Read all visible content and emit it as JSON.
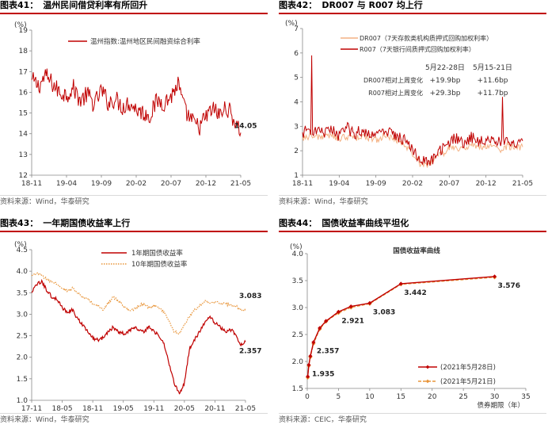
{
  "colors": {
    "dark_red": "#c00000",
    "light_orange": "#f4b183",
    "orange_dotted": "#e8953a",
    "axis_gray": "#888888",
    "grid_gray": "#d9d9d9"
  },
  "panels": [
    {
      "fig": "图表41：",
      "title": "温州民间借贷利率有所回升",
      "source": "资料来源：Wind，华泰研究"
    },
    {
      "fig": "图表42：",
      "title": "DR007 与 R007 均上行",
      "source": "资料来源：Wind，华泰研究"
    },
    {
      "fig": "图表43：",
      "title": "一年期国债收益率上行",
      "source": "资料来源：Wind，华泰研究"
    },
    {
      "fig": "图表44：",
      "title": "国债收益率曲线平坦化",
      "source": "资料来源：CEIC，华泰研究"
    }
  ],
  "chart_data": [
    {
      "type": "line",
      "unit_label": "(%)",
      "ylim": [
        12,
        19
      ],
      "yticks": [
        "12",
        "13",
        "14",
        "15",
        "16",
        "17",
        "18",
        "19"
      ],
      "xtick_labels": [
        "18-11",
        "19-04",
        "19-09",
        "20-02",
        "20-07",
        "20-12",
        "21-05"
      ],
      "x_count": 31,
      "xtick_idx": [
        0,
        5,
        10,
        15,
        20,
        25,
        30
      ],
      "series": [
        {
          "name": "温州指数:温州地区民间融资综合利率",
          "color": "#c00000",
          "values": [
            16.6,
            16.3,
            16.8,
            16.4,
            16.0,
            15.9,
            16.2,
            15.6,
            15.9,
            15.4,
            16.1,
            15.5,
            15.7,
            15.3,
            15.5,
            15.2,
            15.0,
            14.9,
            15.6,
            15.5,
            15.8,
            16.4,
            15.1,
            14.6,
            14.3,
            14.8,
            15.2,
            14.9,
            15.3,
            14.7,
            14.05
          ],
          "noise": 0.45,
          "end_label": "14.05"
        }
      ]
    },
    {
      "type": "line",
      "unit_label": "(%)",
      "ylim": [
        1,
        7
      ],
      "yticks": [
        "1",
        "2",
        "3",
        "4",
        "5",
        "6",
        "7"
      ],
      "xtick_labels": [
        "18-11",
        "19-04",
        "19-09",
        "20-02",
        "20-07",
        "20-12",
        "21-05"
      ],
      "x_count": 31,
      "xtick_idx": [
        0,
        5,
        10,
        15,
        20,
        25,
        30
      ],
      "series": [
        {
          "name": "DR007（7天存款类机构质押式回购加权利率）",
          "color": "#f4b183",
          "values": [
            2.55,
            2.6,
            2.6,
            2.55,
            2.65,
            2.45,
            2.6,
            2.5,
            2.6,
            2.55,
            2.45,
            2.6,
            2.5,
            2.45,
            2.2,
            1.9,
            1.5,
            1.45,
            1.65,
            1.85,
            2.1,
            2.15,
            2.05,
            2.2,
            2.15,
            2.2,
            2.15,
            2.05,
            2.2,
            2.1,
            2.15
          ],
          "noise": 0.15
        },
        {
          "name": "R007（7天银行间质押式回购加权利率）",
          "color": "#c00000",
          "values": [
            2.75,
            2.85,
            2.8,
            2.7,
            2.9,
            2.6,
            2.95,
            2.7,
            2.8,
            2.75,
            2.65,
            2.8,
            2.7,
            2.6,
            2.45,
            2.1,
            1.6,
            1.5,
            1.75,
            2.05,
            2.4,
            2.5,
            2.35,
            2.55,
            2.4,
            2.5,
            2.45,
            2.3,
            2.5,
            2.3,
            2.4
          ],
          "noise": 0.25
        }
      ],
      "spikes": [
        {
          "series": 1,
          "x": 1.3,
          "y": 5.9
        },
        {
          "series": 1,
          "x": 27.2,
          "y": 4.2
        }
      ],
      "annotation_table": {
        "headers": [
          "5月22-28日",
          "5月15-21日"
        ],
        "rows": [
          {
            "label": "DR007相对上周变化",
            "v1": "+19.9bp",
            "v2": "+11.6bp"
          },
          {
            "label": "R007相对上周变化",
            "v1": "+29.3bp",
            "v2": "+11.7bp"
          }
        ]
      }
    },
    {
      "type": "line",
      "unit_label": "(%)",
      "ylim": [
        1.0,
        4.5
      ],
      "yticks": [
        "1.0",
        "1.5",
        "2.0",
        "2.5",
        "3.0",
        "3.5",
        "4.0",
        "4.5"
      ],
      "xtick_labels": [
        "17-11",
        "18-05",
        "18-11",
        "19-05",
        "19-11",
        "20-05",
        "20-11",
        "21-05"
      ],
      "x_count": 43,
      "xtick_idx": [
        0,
        6,
        12,
        18,
        24,
        30,
        36,
        42
      ],
      "series": [
        {
          "name": "1年期国债收益率",
          "color": "#c00000",
          "dashed": false,
          "values": [
            3.5,
            3.7,
            3.75,
            3.55,
            3.4,
            3.35,
            3.15,
            3.05,
            3.1,
            2.9,
            2.75,
            2.6,
            2.45,
            2.4,
            2.45,
            2.6,
            2.7,
            2.6,
            2.55,
            2.6,
            2.7,
            2.65,
            2.6,
            2.7,
            2.6,
            2.5,
            2.3,
            1.85,
            1.4,
            1.15,
            1.4,
            2.2,
            2.4,
            2.6,
            2.8,
            2.95,
            2.8,
            2.7,
            2.6,
            2.65,
            2.55,
            2.3,
            2.357
          ],
          "noise": 0.04,
          "end_label": "2.357"
        },
        {
          "name": "10年期国债收益率",
          "color": "#e8953a",
          "dashed": true,
          "values": [
            3.9,
            3.95,
            3.9,
            3.8,
            3.75,
            3.7,
            3.6,
            3.55,
            3.6,
            3.5,
            3.4,
            3.35,
            3.25,
            3.2,
            3.1,
            3.25,
            3.4,
            3.3,
            3.2,
            3.1,
            3.1,
            3.2,
            3.25,
            3.15,
            3.2,
            3.15,
            3.05,
            2.85,
            2.6,
            2.55,
            2.75,
            2.95,
            3.1,
            3.2,
            3.3,
            3.25,
            3.3,
            3.25,
            3.25,
            3.2,
            3.2,
            3.1,
            3.083
          ],
          "noise": 0.03,
          "end_label": "3.083"
        }
      ]
    },
    {
      "type": "line",
      "title": "国债收益率曲线",
      "unit_label": "(%)",
      "xlabel": "债券期限（年）",
      "ylim": [
        1.5,
        4.0
      ],
      "xlim": [
        0,
        35
      ],
      "yticks": [
        "1.5",
        "2.0",
        "2.5",
        "3.0",
        "3.5",
        "4.0"
      ],
      "xticks": [
        "0",
        "5",
        "10",
        "15",
        "20",
        "25",
        "30",
        "35"
      ],
      "series": [
        {
          "name": "(2021年5月28日)",
          "color": "#c00000",
          "dashed": false,
          "x": [
            0.08,
            0.25,
            0.5,
            1,
            2,
            3,
            5,
            7,
            10,
            15,
            30
          ],
          "values": [
            1.72,
            1.935,
            2.1,
            2.357,
            2.62,
            2.75,
            2.921,
            3.02,
            3.083,
            3.442,
            3.576
          ]
        },
        {
          "name": "(2021年5月21日)",
          "color": "#e8953a",
          "dashed": true,
          "x": [
            0.08,
            0.25,
            0.5,
            1,
            2,
            3,
            5,
            7,
            10,
            15,
            30
          ],
          "values": [
            1.7,
            1.92,
            2.08,
            2.33,
            2.6,
            2.74,
            2.9,
            3.0,
            3.07,
            3.43,
            3.56
          ]
        }
      ],
      "point_labels": [
        {
          "x": 0.25,
          "y": 1.935,
          "text": "1.935"
        },
        {
          "x": 1,
          "y": 2.357,
          "text": "2.357"
        },
        {
          "x": 5,
          "y": 2.921,
          "text": "2.921"
        },
        {
          "x": 10,
          "y": 3.083,
          "text": "3.083"
        },
        {
          "x": 15,
          "y": 3.442,
          "text": "3.442"
        },
        {
          "x": 30,
          "y": 3.576,
          "text": "3.576"
        }
      ]
    }
  ]
}
